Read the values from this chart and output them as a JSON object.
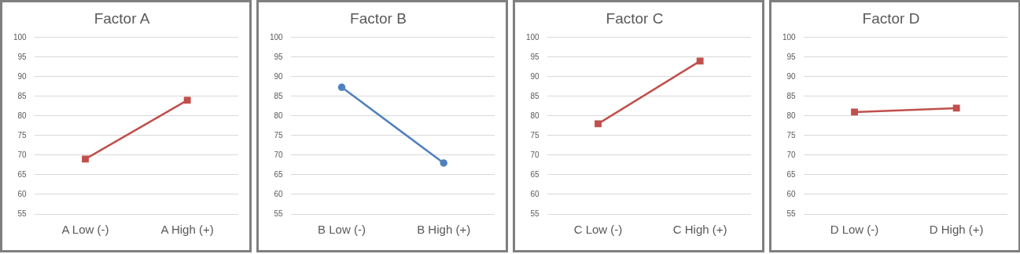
{
  "chart_data": [
    {
      "type": "line",
      "title": "Factor A",
      "categories": [
        "A Low (-)",
        "A High (+)"
      ],
      "series": [
        {
          "color": "#c0504d",
          "values": [
            69,
            84
          ],
          "marker": "square"
        }
      ],
      "ylim": [
        55,
        100
      ],
      "yticks": [
        55,
        60,
        65,
        70,
        75,
        80,
        85,
        90,
        95,
        100
      ],
      "grid": "y",
      "legend": false
    },
    {
      "type": "line",
      "title": "Factor B",
      "categories": [
        "B Low (-)",
        "B High (+)"
      ],
      "series": [
        {
          "color": "#4f81bd",
          "values": [
            87.3,
            68
          ],
          "marker": "circle"
        }
      ],
      "ylim": [
        55,
        100
      ],
      "yticks": [
        55,
        60,
        65,
        70,
        75,
        80,
        85,
        90,
        95,
        100
      ],
      "grid": "y",
      "legend": false
    },
    {
      "type": "line",
      "title": "Factor C",
      "categories": [
        "C Low (-)",
        "C High (+)"
      ],
      "series": [
        {
          "color": "#c0504d",
          "values": [
            78,
            94
          ],
          "marker": "square"
        }
      ],
      "ylim": [
        55,
        100
      ],
      "yticks": [
        55,
        60,
        65,
        70,
        75,
        80,
        85,
        90,
        95,
        100
      ],
      "grid": "y",
      "legend": false
    },
    {
      "type": "line",
      "title": "Factor D",
      "categories": [
        "D Low (-)",
        "D High (+)"
      ],
      "series": [
        {
          "color": "#c0504d",
          "values": [
            81,
            82
          ],
          "marker": "square"
        }
      ],
      "ylim": [
        55,
        100
      ],
      "yticks": [
        55,
        60,
        65,
        70,
        75,
        80,
        85,
        90,
        95,
        100
      ],
      "grid": "y",
      "legend": false
    }
  ]
}
